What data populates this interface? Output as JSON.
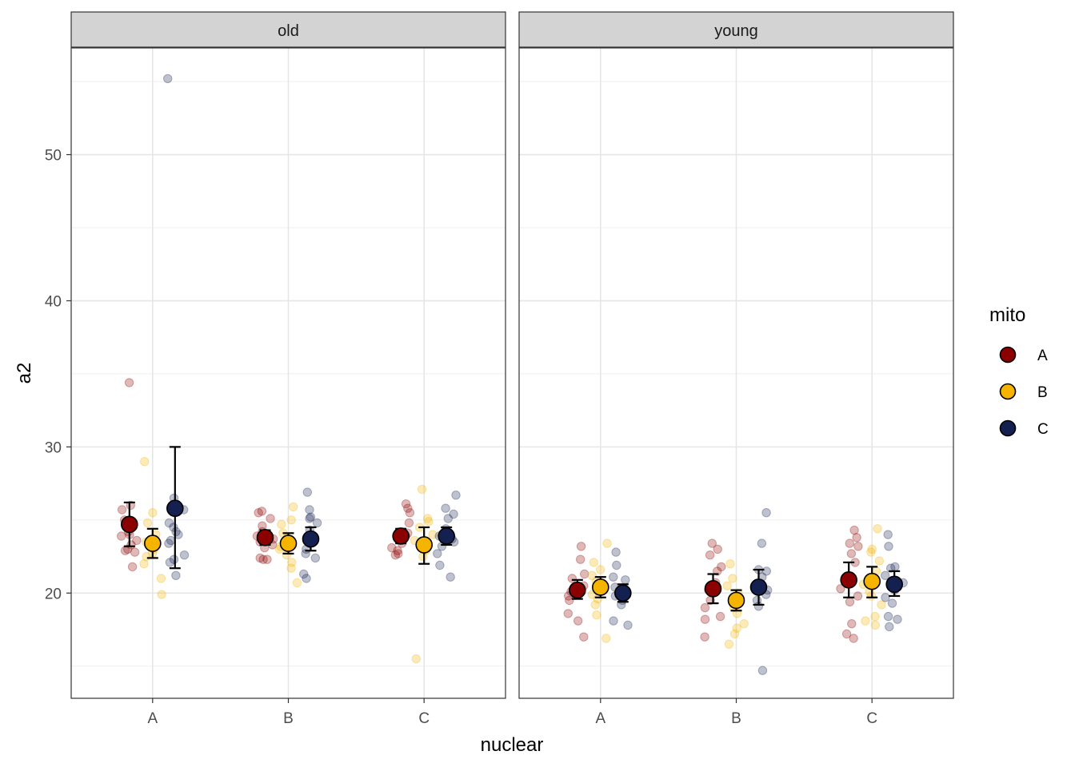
{
  "chart_data": {
    "type": "scatter",
    "subtype": "jittered points with mean and error bars, faceted",
    "xlabel": "nuclear",
    "ylabel": "a2",
    "ylim": [
      12.8,
      57.3
    ],
    "yticks": [
      20,
      30,
      40,
      50
    ],
    "categories": [
      "A",
      "B",
      "C"
    ],
    "legend": {
      "title": "mito",
      "position": "right",
      "entries": [
        {
          "label": "A",
          "color": "#8B0000"
        },
        {
          "label": "B",
          "color": "#F4B400"
        },
        {
          "label": "C",
          "color": "#14204F"
        }
      ]
    },
    "facets": [
      {
        "label": "old",
        "groups": [
          {
            "nuclear": "A",
            "mito": "A",
            "mean": 24.7,
            "lower": 23.2,
            "upper": 26.2,
            "points": [
              34.4,
              26.0,
              25.7,
              25.0,
              24.2,
              24.0,
              23.9,
              23.6,
              23.3,
              23.0,
              22.9,
              22.8,
              21.8
            ]
          },
          {
            "nuclear": "A",
            "mito": "B",
            "mean": 23.4,
            "lower": 22.4,
            "upper": 24.4,
            "points": [
              29.0,
              25.5,
              24.8,
              24.0,
              23.5,
              23.0,
              22.7,
              22.5,
              22.0,
              21.0,
              19.9
            ]
          },
          {
            "nuclear": "A",
            "mito": "C",
            "mean": 25.8,
            "lower": 21.7,
            "upper": 30.0,
            "points": [
              55.2,
              26.5,
              25.7,
              24.8,
              24.5,
              24.2,
              24.0,
              23.6,
              23.4,
              22.6,
              22.3,
              22.1,
              21.2
            ]
          },
          {
            "nuclear": "B",
            "mito": "A",
            "mean": 23.8,
            "lower": 23.3,
            "upper": 24.3,
            "points": [
              25.6,
              25.5,
              25.1,
              24.6,
              24.2,
              23.9,
              23.7,
              23.5,
              23.3,
              23.1,
              22.4,
              22.3,
              22.3
            ]
          },
          {
            "nuclear": "B",
            "mito": "B",
            "mean": 23.4,
            "lower": 22.7,
            "upper": 24.1,
            "points": [
              25.9,
              25.0,
              24.7,
              24.1,
              23.8,
              23.2,
              23.0,
              22.6,
              22.1,
              21.7,
              20.7
            ]
          },
          {
            "nuclear": "B",
            "mito": "C",
            "mean": 23.7,
            "lower": 22.9,
            "upper": 24.5,
            "points": [
              26.9,
              25.7,
              25.2,
              25.1,
              24.8,
              24.3,
              23.4,
              23.0,
              22.7,
              22.4,
              21.3,
              21.0
            ]
          },
          {
            "nuclear": "C",
            "mito": "A",
            "mean": 23.9,
            "lower": 23.4,
            "upper": 24.4,
            "points": [
              26.1,
              25.8,
              25.5,
              24.8,
              24.1,
              23.9,
              23.7,
              23.4,
              23.1,
              22.9,
              22.7,
              22.6
            ]
          },
          {
            "nuclear": "C",
            "mito": "B",
            "mean": 23.3,
            "lower": 22.0,
            "upper": 24.5,
            "points": [
              27.1,
              25.1,
              24.9,
              24.5,
              24.0,
              23.6,
              23.3,
              22.9,
              22.5,
              15.5
            ]
          },
          {
            "nuclear": "C",
            "mito": "C",
            "mean": 23.9,
            "lower": 23.3,
            "upper": 24.5,
            "points": [
              26.7,
              25.8,
              25.4,
              25.1,
              24.4,
              23.9,
              23.7,
              23.5,
              23.2,
              22.7,
              21.9,
              21.1
            ]
          }
        ]
      },
      {
        "label": "young",
        "groups": [
          {
            "nuclear": "A",
            "mito": "A",
            "mean": 20.2,
            "lower": 19.6,
            "upper": 20.9,
            "points": [
              23.2,
              22.3,
              21.3,
              21.0,
              20.5,
              20.1,
              19.8,
              19.5,
              18.6,
              18.1,
              17.0
            ]
          },
          {
            "nuclear": "A",
            "mito": "B",
            "mean": 20.4,
            "lower": 19.7,
            "upper": 21.1,
            "points": [
              23.4,
              22.1,
              21.6,
              21.2,
              20.8,
              20.3,
              19.9,
              19.6,
              19.2,
              18.5,
              16.9
            ]
          },
          {
            "nuclear": "A",
            "mito": "C",
            "mean": 20.0,
            "lower": 19.4,
            "upper": 20.6,
            "points": [
              22.8,
              21.9,
              21.1,
              20.9,
              20.4,
              20.1,
              19.8,
              19.5,
              19.2,
              18.1,
              17.8
            ]
          },
          {
            "nuclear": "B",
            "mito": "A",
            "mean": 20.3,
            "lower": 19.3,
            "upper": 21.3,
            "points": [
              23.4,
              23.0,
              22.6,
              21.8,
              21.5,
              20.7,
              20.2,
              19.5,
              19.0,
              18.4,
              18.2,
              17.0
            ]
          },
          {
            "nuclear": "B",
            "mito": "B",
            "mean": 19.5,
            "lower": 18.8,
            "upper": 20.2,
            "points": [
              22.0,
              21.0,
              20.5,
              20.0,
              19.5,
              19.0,
              18.6,
              17.9,
              17.6,
              17.2,
              16.5
            ]
          },
          {
            "nuclear": "B",
            "mito": "C",
            "mean": 20.4,
            "lower": 19.2,
            "upper": 21.6,
            "points": [
              25.5,
              23.4,
              21.6,
              21.5,
              21.1,
              20.6,
              20.2,
              19.9,
              19.5,
              19.1,
              14.7
            ]
          },
          {
            "nuclear": "C",
            "mito": "A",
            "mean": 20.9,
            "lower": 19.7,
            "upper": 22.1,
            "points": [
              24.3,
              23.8,
              23.4,
              23.2,
              22.7,
              22.1,
              21.0,
              20.3,
              19.8,
              19.4,
              17.9,
              17.2,
              16.9
            ]
          },
          {
            "nuclear": "C",
            "mito": "B",
            "mean": 20.8,
            "lower": 19.7,
            "upper": 21.8,
            "points": [
              24.4,
              23.0,
              22.8,
              22.2,
              21.5,
              20.6,
              20.1,
              19.8,
              19.2,
              18.4,
              18.1,
              17.8
            ]
          },
          {
            "nuclear": "C",
            "mito": "C",
            "mean": 20.6,
            "lower": 19.8,
            "upper": 21.5,
            "points": [
              24.0,
              23.2,
              21.8,
              21.7,
              21.2,
              20.7,
              20.2,
              19.7,
              19.3,
              18.4,
              18.2,
              17.7
            ]
          }
        ]
      }
    ]
  }
}
